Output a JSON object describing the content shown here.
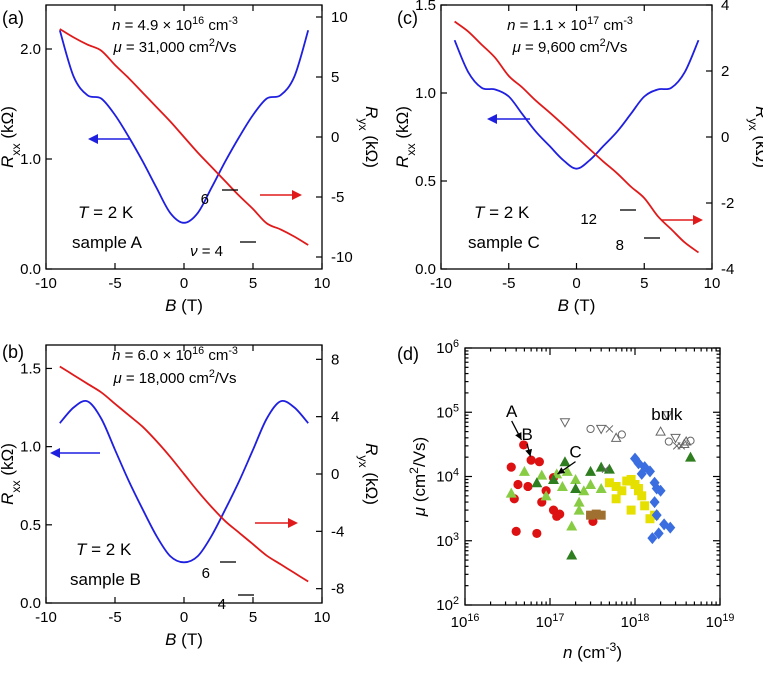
{
  "chart_data": [
    {
      "id": "a",
      "type": "line",
      "panel_label": "(a)",
      "density": "n = 4.9 × 10^16 cm^-3",
      "mobility": "μ = 31,000 cm^2/Vs",
      "temperature": "T = 2 K",
      "sample": "sample A",
      "xlabel": "B (T)",
      "ylabel_left": "Rxx (kΩ)",
      "ylabel_right": "Ryx (kΩ)",
      "xlim": [
        -10,
        10
      ],
      "ylim_left": [
        0,
        2.4
      ],
      "ylim_right": [
        -11,
        11
      ],
      "xticks": [
        "-10",
        "-5",
        "0",
        "5",
        "10"
      ],
      "yticks_left": [
        "0.0",
        "1.0",
        "2.0"
      ],
      "yticks_right": [
        "-10",
        "-5",
        "0",
        "5",
        "10"
      ],
      "filling_labels": [
        "6",
        "ν = 4"
      ],
      "series": [
        {
          "name": "Rxx",
          "color": "#1f1fe0",
          "axis": "left",
          "x": [
            -9,
            -8,
            -7,
            -6,
            -5,
            -4,
            -3,
            -2,
            -1,
            0,
            1,
            2,
            3,
            4,
            5,
            6,
            7,
            8,
            9
          ],
          "y": [
            2.17,
            1.75,
            1.58,
            1.55,
            1.4,
            1.2,
            0.98,
            0.74,
            0.51,
            0.42,
            0.51,
            0.74,
            0.98,
            1.2,
            1.4,
            1.55,
            1.58,
            1.75,
            2.17
          ]
        },
        {
          "name": "Ryx",
          "color": "#e01a1a",
          "axis": "right",
          "x": [
            -9,
            -8,
            -7,
            -6,
            -5,
            -4,
            -3,
            -2,
            -1,
            0,
            1,
            2,
            3,
            4,
            5,
            6,
            7,
            8,
            9
          ],
          "y": [
            9.0,
            8.3,
            7.7,
            7.2,
            6.0,
            4.9,
            3.7,
            2.5,
            1.3,
            0.0,
            -1.3,
            -2.5,
            -3.7,
            -4.9,
            -6.0,
            -7.2,
            -7.7,
            -8.3,
            -9.0
          ]
        }
      ]
    },
    {
      "id": "b",
      "type": "line",
      "panel_label": "(b)",
      "density": "n = 6.0 × 10^16 cm^-3",
      "mobility": "μ = 18,000 cm^2/Vs",
      "temperature": "T = 2 K",
      "sample": "sample B",
      "xlabel": "B (T)",
      "ylabel_left": "Rxx (kΩ)",
      "ylabel_right": "Ryx (kΩ)",
      "xlim": [
        -10,
        10
      ],
      "ylim_left": [
        0,
        1.65
      ],
      "ylim_right": [
        -9,
        9
      ],
      "xticks": [
        "-10",
        "-5",
        "0",
        "5",
        "10"
      ],
      "yticks_left": [
        "0.0",
        "0.5",
        "1.0",
        "1.5"
      ],
      "yticks_right": [
        "-8",
        "-4",
        "0",
        "4",
        "8"
      ],
      "filling_labels": [
        "6",
        "4"
      ],
      "series": [
        {
          "name": "Rxx",
          "color": "#1f1fe0",
          "axis": "left",
          "x": [
            -9,
            -8,
            -7,
            -6,
            -5,
            -4,
            -3,
            -2,
            -1,
            0,
            1,
            2,
            3,
            4,
            5,
            6,
            7,
            8,
            9
          ],
          "y": [
            1.15,
            1.25,
            1.29,
            1.18,
            0.98,
            0.78,
            0.6,
            0.43,
            0.3,
            0.26,
            0.3,
            0.43,
            0.6,
            0.78,
            0.98,
            1.18,
            1.29,
            1.25,
            1.15
          ]
        },
        {
          "name": "Ryx",
          "color": "#e01a1a",
          "axis": "right",
          "x": [
            -9,
            -8,
            -7,
            -6,
            -5,
            -4,
            -3,
            -2,
            -1,
            0,
            1,
            2,
            3,
            4,
            5,
            6,
            7,
            8,
            9
          ],
          "y": [
            7.5,
            6.9,
            6.3,
            5.7,
            4.9,
            4.1,
            3.3,
            2.3,
            1.2,
            0.0,
            -1.2,
            -2.3,
            -3.3,
            -4.1,
            -4.9,
            -5.7,
            -6.3,
            -6.9,
            -7.5
          ]
        }
      ]
    },
    {
      "id": "c",
      "type": "line",
      "panel_label": "(c)",
      "density": "n = 1.1 × 10^17 cm^-3",
      "mobility": "μ = 9,600 cm^2/Vs",
      "temperature": "T = 2 K",
      "sample": "sample C",
      "xlabel": "B (T)",
      "ylabel_left": "Rxx (kΩ)",
      "ylabel_right": "Ryx (kΩ)",
      "xlim": [
        -10,
        10
      ],
      "ylim_left": [
        0,
        1.5
      ],
      "ylim_right": [
        -4,
        4
      ],
      "xticks": [
        "-10",
        "-5",
        "0",
        "5",
        "10"
      ],
      "yticks_left": [
        "0.0",
        "0.5",
        "1.0",
        "1.5"
      ],
      "yticks_right": [
        "-4",
        "-2",
        "0",
        "2",
        "4"
      ],
      "filling_labels": [
        "12",
        "8"
      ],
      "series": [
        {
          "name": "Rxx",
          "color": "#1f1fe0",
          "axis": "left",
          "x": [
            -9,
            -8,
            -7,
            -6,
            -5,
            -4,
            -3,
            -2,
            -1,
            0,
            1,
            2,
            3,
            4,
            5,
            6,
            7,
            8,
            9
          ],
          "y": [
            1.3,
            1.12,
            1.03,
            1.02,
            0.98,
            0.88,
            0.78,
            0.7,
            0.62,
            0.57,
            0.62,
            0.7,
            0.78,
            0.88,
            0.98,
            1.02,
            1.03,
            1.12,
            1.3
          ]
        },
        {
          "name": "Ryx",
          "color": "#e01a1a",
          "axis": "right",
          "x": [
            -9,
            -8,
            -7,
            -6,
            -5,
            -4,
            -3,
            -2,
            -1,
            0,
            1,
            2,
            3,
            4,
            5,
            6,
            7,
            8,
            9
          ],
          "y": [
            3.5,
            3.2,
            2.8,
            2.4,
            1.85,
            1.5,
            1.1,
            0.75,
            0.38,
            0.0,
            -0.38,
            -0.75,
            -1.1,
            -1.5,
            -1.85,
            -2.4,
            -2.8,
            -3.2,
            -3.5
          ]
        }
      ]
    },
    {
      "id": "d",
      "type": "scatter",
      "panel_label": "(d)",
      "xlabel": "n (cm^-3)",
      "ylabel": "μ (cm^2/Vs)",
      "xscale": "log",
      "yscale": "log",
      "xlim": [
        1e+16,
        1e+19
      ],
      "ylim": [
        100,
        1000000
      ],
      "xticks": [
        {
          "b": "10",
          "e": "16"
        },
        {
          "b": "10",
          "e": "17"
        },
        {
          "b": "10",
          "e": "18"
        },
        {
          "b": "10",
          "e": "19"
        }
      ],
      "yticks": [
        {
          "b": "10",
          "e": "2"
        },
        {
          "b": "10",
          "e": "3"
        },
        {
          "b": "10",
          "e": "4"
        },
        {
          "b": "10",
          "e": "5"
        },
        {
          "b": "10",
          "e": "6"
        }
      ],
      "annotations": [
        {
          "text": "A",
          "n": 4.9e+16,
          "mu": 31000
        },
        {
          "text": "B",
          "n": 6e+16,
          "mu": 18000
        },
        {
          "text": "C",
          "n": 1.1e+17,
          "mu": 9600
        },
        {
          "text": "bulk",
          "n": 3.5e+18,
          "mu": 90000
        }
      ],
      "series": [
        {
          "name": "red circles",
          "marker": "circle",
          "color": "#dd1111",
          "x": [
            4.9e+16,
            6e+16,
            1.1e+17,
            3.5e+16,
            7.5e+16,
            5.5e+16,
            9e+16,
            1.3e+17,
            4.2e+16,
            8e+16,
            1.1e+17,
            7e+16,
            1.2e+17,
            3.2e+17,
            4e+16,
            3.8e+16
          ],
          "y": [
            31000,
            18000,
            9600,
            14000,
            17000,
            7000,
            6000,
            2600,
            7500,
            4000,
            3000,
            1300,
            2400,
            2000,
            1400,
            4500
          ]
        },
        {
          "name": "light green triangles",
          "marker": "triangle",
          "color": "#88cc44",
          "x": [
            5e+16,
            8e+16,
            1.2e+17,
            1.6e+17,
            2e+17,
            1.4e+17,
            2.5e+17,
            3e+17,
            9e+16,
            4e+17,
            2.2e+17,
            1.8e+17,
            3.5e+16,
            2.2e+17
          ],
          "y": [
            12000,
            10500,
            11000,
            12000,
            9000,
            7000,
            6000,
            7500,
            5000,
            6500,
            3000,
            1700,
            5500,
            4000
          ]
        },
        {
          "name": "dark green triangles",
          "marker": "triangle",
          "color": "#2e7d1f",
          "x": [
            1.5e+17,
            3e+17,
            4e+17,
            5e+17,
            7e+16,
            1.1e+17,
            2e+17,
            4.5e+18,
            1.8e+17
          ],
          "y": [
            17000,
            12000,
            14000,
            13000,
            8000,
            9000,
            6500,
            20000,
            600
          ]
        },
        {
          "name": "brown squares",
          "marker": "square",
          "color": "#a07030",
          "x": [
            3e+17,
            3.5e+17,
            4e+17
          ],
          "y": [
            2500,
            2600,
            2500
          ]
        },
        {
          "name": "yellow squares",
          "marker": "square",
          "color": "#e6e000",
          "x": [
            5e+17,
            6e+17,
            7e+17,
            8e+17,
            9e+17,
            1e+18,
            1.1e+18,
            1.2e+18,
            1.3e+18,
            1.5e+18,
            1.7e+18,
            6e+17,
            9e+17,
            1.1e+18
          ],
          "y": [
            8000,
            7000,
            6000,
            8500,
            9000,
            7500,
            6500,
            5000,
            3500,
            2200,
            2500,
            4500,
            3000,
            6000
          ]
        },
        {
          "name": "blue diamonds",
          "marker": "diamond",
          "color": "#3a6ee0",
          "x": [
            1e+18,
            1.1e+18,
            1.3e+18,
            1.5e+18,
            1.2e+18,
            1.7e+18,
            1.8e+18,
            2e+18,
            1.7e+18,
            1.8e+18,
            2.2e+18,
            2.6e+18,
            1.9e+18,
            1.6e+18
          ],
          "y": [
            19000,
            16000,
            14000,
            12000,
            11000,
            8000,
            6500,
            6000,
            4000,
            2500,
            1800,
            1600,
            1300,
            1100
          ]
        },
        {
          "name": "bulk (open symbols)",
          "marker": "open",
          "color": "#666666",
          "x": [
            3e+17,
            4e+17,
            5e+17,
            6e+17,
            7e+17,
            1.5e+17,
            4.5e+17,
            2e+18,
            2.5e+18,
            3e+18,
            3.5e+18,
            4e+18,
            4.5e+18,
            2.4e+18,
            3.1e+18,
            3.8e+18
          ],
          "y": [
            55000,
            55000,
            55000,
            40000,
            45000,
            70000,
            13000,
            50000,
            35000,
            40000,
            30000,
            35000,
            36000,
            90000,
            30000,
            32000
          ]
        }
      ]
    }
  ]
}
